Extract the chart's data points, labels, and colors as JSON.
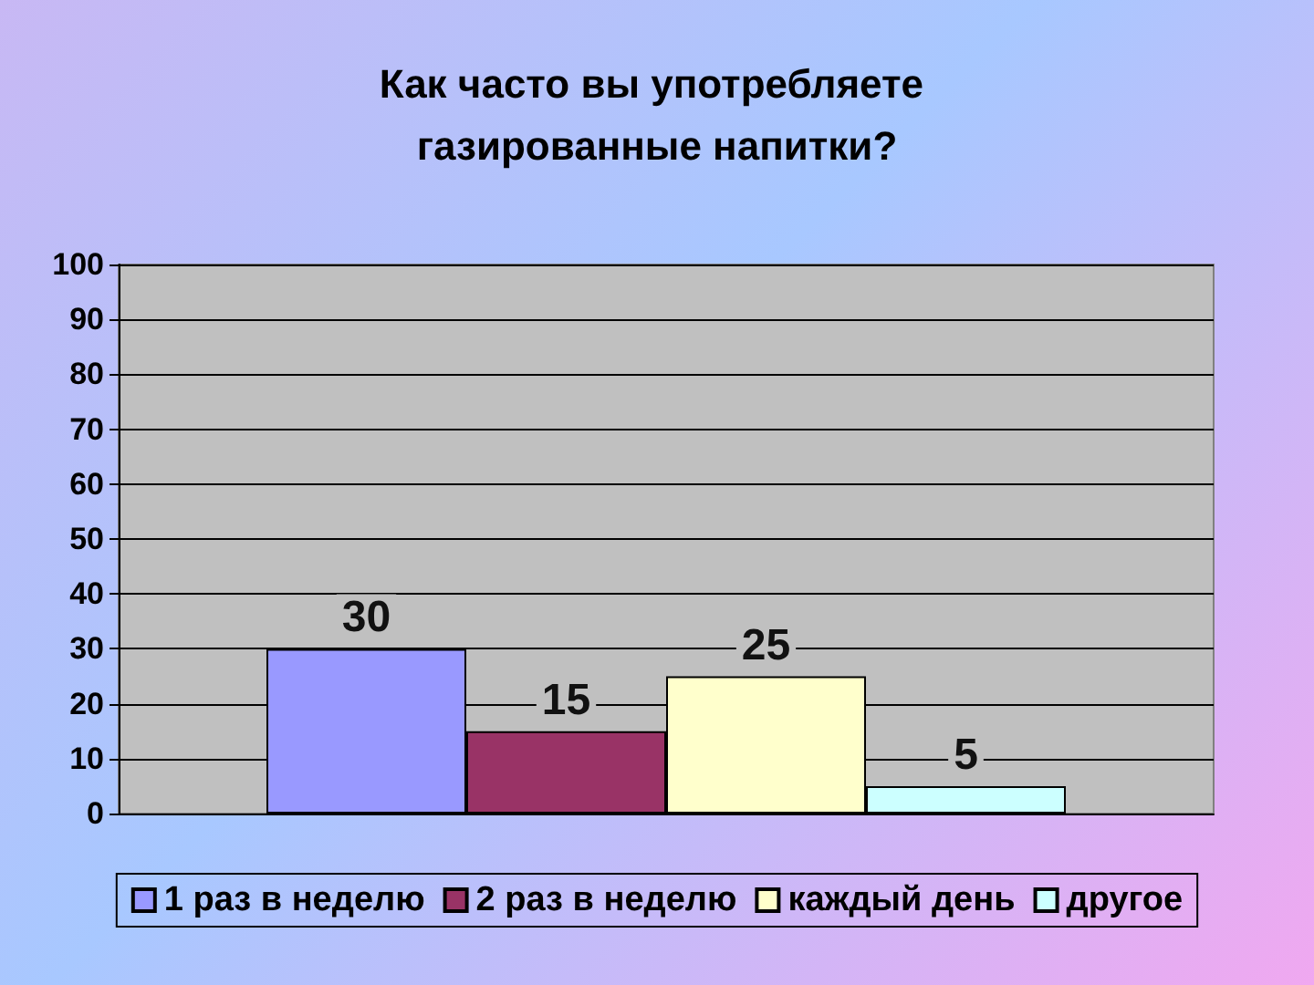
{
  "chart_data": {
    "type": "bar",
    "title": "Как часто вы употребляете газированные напитки?",
    "categories": [
      null
    ],
    "series": [
      {
        "name": "1 раз в неделю",
        "color": "#9999ff",
        "values": [
          30
        ]
      },
      {
        "name": "2 раз в неделю",
        "color": "#993366",
        "values": [
          15
        ]
      },
      {
        "name": "каждый день",
        "color": "#ffffcc",
        "values": [
          25
        ]
      },
      {
        "name": "другое",
        "color": "#ccffff",
        "values": [
          5
        ]
      }
    ],
    "ylim": [
      0,
      100
    ],
    "yticks": [
      0,
      10,
      20,
      30,
      40,
      50,
      60,
      70,
      80,
      90,
      100
    ],
    "grid": "y",
    "legend": "bottom",
    "data_labels": true
  }
}
